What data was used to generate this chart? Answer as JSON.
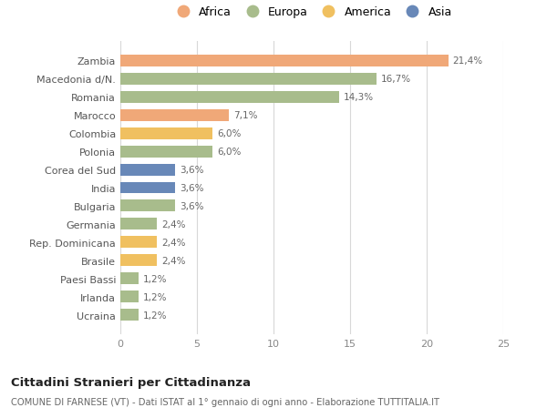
{
  "countries": [
    "Ucraina",
    "Irlanda",
    "Paesi Bassi",
    "Brasile",
    "Rep. Dominicana",
    "Germania",
    "Bulgaria",
    "India",
    "Corea del Sud",
    "Polonia",
    "Colombia",
    "Marocco",
    "Romania",
    "Macedonia d/N.",
    "Zambia"
  ],
  "values": [
    1.2,
    1.2,
    1.2,
    2.4,
    2.4,
    2.4,
    3.6,
    3.6,
    3.6,
    6.0,
    6.0,
    7.1,
    14.3,
    16.7,
    21.4
  ],
  "labels": [
    "1,2%",
    "1,2%",
    "1,2%",
    "2,4%",
    "2,4%",
    "2,4%",
    "3,6%",
    "3,6%",
    "3,6%",
    "6,0%",
    "6,0%",
    "7,1%",
    "14,3%",
    "16,7%",
    "21,4%"
  ],
  "bar_colors": [
    "#A8BC8C",
    "#A8BC8C",
    "#A8BC8C",
    "#F0C060",
    "#F0C060",
    "#A8BC8C",
    "#A8BC8C",
    "#6888B8",
    "#6888B8",
    "#A8BC8C",
    "#F0C060",
    "#F0A878",
    "#A8BC8C",
    "#A8BC8C",
    "#F0A878"
  ],
  "title": "Cittadini Stranieri per Cittadinanza",
  "subtitle": "COMUNE DI FARNESE (VT) - Dati ISTAT al 1° gennaio di ogni anno - Elaborazione TUTTITALIA.IT",
  "xlim": [
    0,
    25
  ],
  "xticks": [
    0,
    5,
    10,
    15,
    20,
    25
  ],
  "legend_labels": [
    "Africa",
    "Europa",
    "America",
    "Asia"
  ],
  "legend_colors": [
    "#F0A878",
    "#A8BC8C",
    "#F0C060",
    "#6888B8"
  ],
  "bg_color": "#FFFFFF",
  "grid_color": "#D8D8D8"
}
